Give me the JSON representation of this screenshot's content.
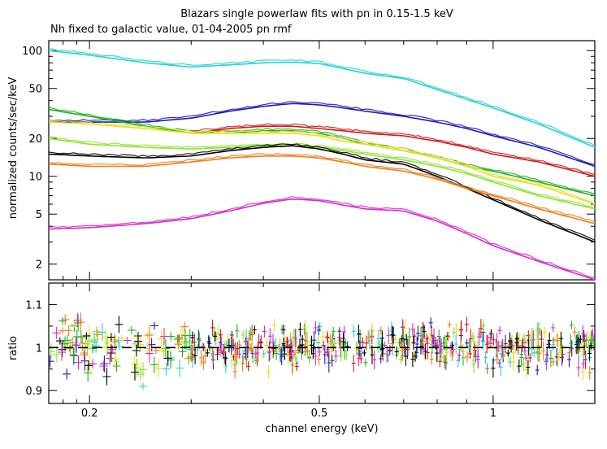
{
  "chart_data": {
    "type": "line",
    "title": "Blazars single powerlaw fits with pn in 0.15-1.5 keV",
    "subtitle": "Nh fixed to galactic value, 01-04-2005 pn rmf",
    "xlabel": "channel energy (keV)",
    "x_scale": "log",
    "xlim": [
      0.17,
      1.5
    ],
    "x_ticks": [
      {
        "value": 0.2,
        "label": "0.2"
      },
      {
        "value": 0.5,
        "label": "0.5"
      },
      {
        "value": 1,
        "label": "1"
      }
    ],
    "panels": [
      {
        "id": "spectrum",
        "ylabel": "normalized counts/sec/keV",
        "y_scale": "log",
        "ylim": [
          1.5,
          120
        ],
        "y_ticks": [
          {
            "value": 2,
            "label": "2"
          },
          {
            "value": 5,
            "label": "5"
          },
          {
            "value": 10,
            "label": "10"
          },
          {
            "value": 20,
            "label": "20"
          },
          {
            "value": 50,
            "label": "50"
          },
          {
            "value": 100,
            "label": "100"
          }
        ],
        "series": [
          {
            "name": "cyan",
            "color": "#22d3d8",
            "x": [
              0.17,
              0.2,
              0.25,
              0.3,
              0.35,
              0.4,
              0.45,
              0.5,
              0.55,
              0.6,
              0.7,
              0.8,
              0.9,
              1.0,
              1.2,
              1.5
            ],
            "y": [
              100,
              92,
              80,
              74,
              77,
              80,
              81,
              79,
              72,
              66,
              60,
              49,
              41,
              35,
              26,
              17
            ]
          },
          {
            "name": "blue",
            "color": "#1c1cb8",
            "x": [
              0.17,
              0.2,
              0.25,
              0.3,
              0.35,
              0.4,
              0.45,
              0.5,
              0.55,
              0.6,
              0.7,
              0.8,
              0.9,
              1.0,
              1.2,
              1.5
            ],
            "y": [
              27,
              27,
              27,
              29,
              33,
              36,
              38,
              37,
              35,
              33,
              30,
              27,
              24,
              21,
              17,
              12
            ]
          },
          {
            "name": "red",
            "color": "#d41818",
            "x": [
              0.3,
              0.35,
              0.4,
              0.45,
              0.5,
              0.55,
              0.6,
              0.7,
              0.8,
              0.9,
              1.0,
              1.2,
              1.5
            ],
            "y": [
              22,
              24,
              25,
              25,
              24,
              23,
              22,
              21,
              19,
              17,
              15,
              13,
              10
            ]
          },
          {
            "name": "green",
            "color": "#22b022",
            "x": [
              0.17,
              0.2,
              0.25,
              0.3,
              0.35,
              0.4,
              0.45,
              0.5,
              0.55,
              0.6,
              0.7,
              0.8,
              0.9,
              1.0,
              1.2,
              1.5
            ],
            "y": [
              34,
              30,
              25,
              22,
              22,
              23,
              23,
              22,
              20,
              18,
              16,
              14,
              12,
              11,
              9,
              7
            ]
          },
          {
            "name": "yellow",
            "color": "#e8e020",
            "x": [
              0.17,
              0.2,
              0.25,
              0.3,
              0.35,
              0.4,
              0.45,
              0.5,
              0.55,
              0.6,
              0.7,
              0.8,
              0.9,
              1.0,
              1.2,
              1.5
            ],
            "y": [
              27,
              26,
              24,
              22,
              22,
              22,
              22,
              21,
              19,
              18,
              16,
              14,
              12,
              10,
              8.5,
              6
            ]
          },
          {
            "name": "light green",
            "color": "#8ae62c",
            "x": [
              0.17,
              0.2,
              0.25,
              0.3,
              0.35,
              0.4,
              0.45,
              0.5,
              0.55,
              0.6,
              0.7,
              0.8,
              0.9,
              1.0,
              1.2,
              1.5
            ],
            "y": [
              20,
              18,
              17,
              16.5,
              17,
              17.5,
              17.5,
              17,
              16,
              15,
              13.5,
              12,
              10.5,
              9,
              7,
              5.5
            ]
          },
          {
            "name": "black",
            "color": "#000000",
            "x": [
              0.17,
              0.2,
              0.25,
              0.3,
              0.35,
              0.4,
              0.45,
              0.5,
              0.55,
              0.6,
              0.7,
              0.8,
              0.9,
              1.0,
              1.2,
              1.5
            ],
            "y": [
              15,
              14.5,
              14,
              14.5,
              16,
              17,
              17.5,
              16.5,
              15,
              13.5,
              12.5,
              10,
              8,
              6.5,
              4.5,
              3
            ]
          },
          {
            "name": "orange",
            "color": "#f07d18",
            "x": [
              0.17,
              0.2,
              0.25,
              0.3,
              0.35,
              0.4,
              0.45,
              0.5,
              0.55,
              0.6,
              0.7,
              0.8,
              0.9,
              1.0,
              1.2,
              1.5
            ],
            "y": [
              12.5,
              12,
              12,
              13,
              14,
              14.5,
              14.5,
              14,
              13,
              12,
              11,
              9.5,
              8,
              7,
              5.5,
              4.2
            ]
          },
          {
            "name": "magenta",
            "color": "#d52ad0",
            "x": [
              0.17,
              0.2,
              0.25,
              0.3,
              0.35,
              0.4,
              0.45,
              0.5,
              0.55,
              0.6,
              0.7,
              0.8,
              0.9,
              1.0,
              1.2,
              1.5
            ],
            "y": [
              3.8,
              3.9,
              4.2,
              4.6,
              5.3,
              6.1,
              6.6,
              6.4,
              5.9,
              5.5,
              5.3,
              4.4,
              3.5,
              2.8,
              2.1,
              1.5
            ]
          }
        ]
      },
      {
        "id": "ratio",
        "ylabel": "ratio",
        "y_scale": "linear",
        "ylim": [
          0.87,
          1.15
        ],
        "y_ticks": [
          {
            "value": 0.9,
            "label": "0.9"
          },
          {
            "value": 1,
            "label": "1"
          },
          {
            "value": 1.1,
            "label": "1.1"
          }
        ],
        "reference_line": {
          "y": 1,
          "style": "dashed",
          "color": "#000000"
        },
        "scatter": "residuals scatter around 1 (approx. 0.92-1.10) for every series"
      }
    ]
  }
}
